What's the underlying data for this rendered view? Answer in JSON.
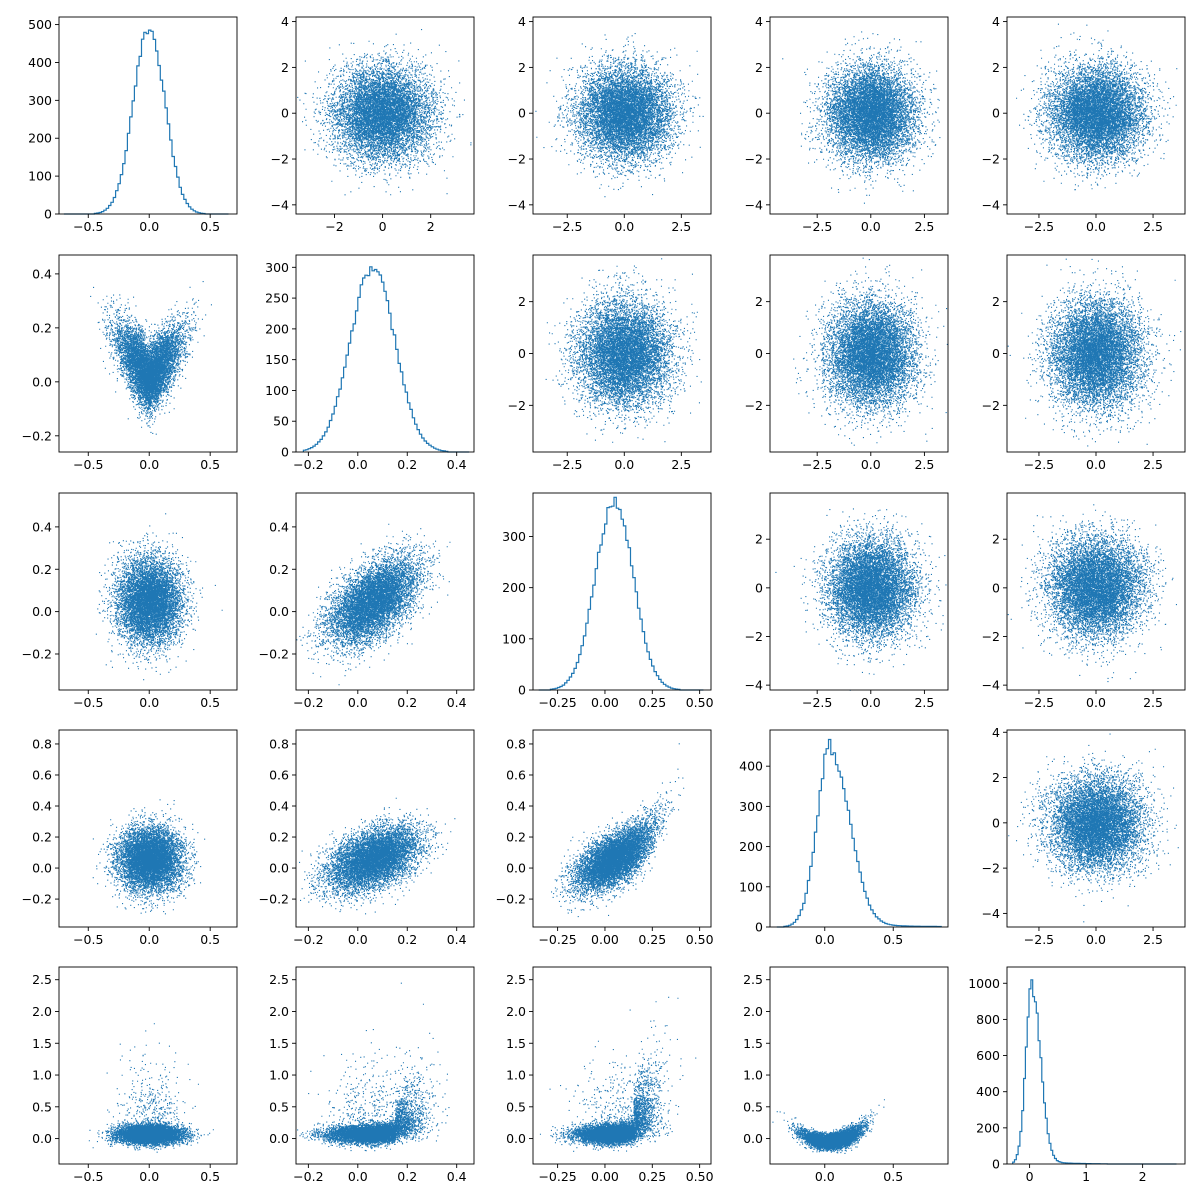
{
  "figure": {
    "type": "pair-plot-grid",
    "rows": 5,
    "cols": 5,
    "series_color": "#1f77b4",
    "grid": false
  },
  "chart_data": [
    {
      "type": "histogram",
      "row": 0,
      "col": 0,
      "xlim": [
        -0.74,
        0.72
      ],
      "ylim": [
        0,
        520
      ],
      "xticks": [
        -0.5,
        0,
        0.5
      ],
      "xtick_labels": [
        "−0.5",
        "0.0",
        "0.5"
      ],
      "yticks": [
        0,
        100,
        200,
        300,
        400,
        500
      ],
      "ytick_labels": [
        "0",
        "100",
        "200",
        "300",
        "400",
        "500"
      ],
      "dist": {
        "center": 0.0,
        "sd": 0.13,
        "peak": 490,
        "min": -0.7,
        "max": 0.65,
        "bins": 70
      }
    },
    {
      "type": "scatter",
      "row": 0,
      "col": 1,
      "xlim": [
        -3.6,
        3.8
      ],
      "ylim": [
        -4.4,
        4.2
      ],
      "xticks": [
        -2,
        0,
        2
      ],
      "xtick_labels": [
        "−2",
        "0",
        "2"
      ],
      "yticks": [
        -4,
        -2,
        0,
        2,
        4
      ],
      "ytick_labels": [
        "−4",
        "−2",
        "0",
        "2",
        "4"
      ],
      "points": {
        "n": 9000,
        "x": {
          "mean": 0,
          "sd": 1
        },
        "y": {
          "mean": 0,
          "sd": 1
        }
      }
    },
    {
      "type": "scatter",
      "row": 0,
      "col": 2,
      "xlim": [
        -4.0,
        3.8
      ],
      "ylim": [
        -4.4,
        4.2
      ],
      "xticks": [
        -2.5,
        0,
        2.5
      ],
      "xtick_labels": [
        "−2.5",
        "0.0",
        "2.5"
      ],
      "yticks": [
        -4,
        -2,
        0,
        2,
        4
      ],
      "ytick_labels": [
        "−4",
        "−2",
        "0",
        "2",
        "4"
      ],
      "points": {
        "n": 9000,
        "x": {
          "mean": 0,
          "sd": 1
        },
        "y": {
          "mean": 0,
          "sd": 1
        }
      }
    },
    {
      "type": "scatter",
      "row": 0,
      "col": 3,
      "xlim": [
        -4.7,
        3.6
      ],
      "ylim": [
        -4.4,
        4.2
      ],
      "xticks": [
        -2.5,
        0,
        2.5
      ],
      "xtick_labels": [
        "−2.5",
        "0.0",
        "2.5"
      ],
      "yticks": [
        -4,
        -2,
        0,
        2,
        4
      ],
      "ytick_labels": [
        "−4",
        "−2",
        "0",
        "2",
        "4"
      ],
      "points": {
        "n": 9000,
        "x": {
          "mean": 0,
          "sd": 1
        },
        "y": {
          "mean": 0,
          "sd": 1
        }
      }
    },
    {
      "type": "scatter",
      "row": 0,
      "col": 4,
      "xlim": [
        -3.9,
        3.9
      ],
      "ylim": [
        -4.4,
        4.2
      ],
      "xticks": [
        -2.5,
        0,
        2.5
      ],
      "xtick_labels": [
        "−2.5",
        "0.0",
        "2.5"
      ],
      "yticks": [
        -4,
        -2,
        0,
        2,
        4
      ],
      "ytick_labels": [
        "−4",
        "−2",
        "0",
        "2",
        "4"
      ],
      "points": {
        "n": 9000,
        "x": {
          "mean": 0,
          "sd": 1
        },
        "y": {
          "mean": 0,
          "sd": 1
        }
      }
    },
    {
      "type": "scatter",
      "row": 1,
      "col": 0,
      "xlim": [
        -0.74,
        0.72
      ],
      "ylim": [
        -0.26,
        0.47
      ],
      "xticks": [
        -0.5,
        0,
        0.5
      ],
      "xtick_labels": [
        "−0.5",
        "0.0",
        "0.5"
      ],
      "yticks": [
        -0.2,
        0,
        0.2,
        0.4
      ],
      "ytick_labels": [
        "−0.2",
        "0.0",
        "0.2",
        "0.4"
      ],
      "points": {
        "n": 8000,
        "x": {
          "mean": 0,
          "sd": 0.13
        },
        "y": {
          "mean": 0.05,
          "sd": 0.08
        },
        "shape": "v"
      }
    },
    {
      "type": "histogram",
      "row": 1,
      "col": 1,
      "xlim": [
        -0.25,
        0.47
      ],
      "ylim": [
        0,
        320
      ],
      "xticks": [
        -0.2,
        0,
        0.2,
        0.4
      ],
      "xtick_labels": [
        "−0.2",
        "0.0",
        "0.2",
        "0.4"
      ],
      "yticks": [
        0,
        50,
        100,
        150,
        200,
        250,
        300
      ],
      "ytick_labels": [
        "0",
        "50",
        "100",
        "150",
        "200",
        "250",
        "300"
      ],
      "dist": {
        "center": 0.06,
        "sd": 0.09,
        "peak": 300,
        "min": -0.22,
        "max": 0.45,
        "bins": 70
      }
    },
    {
      "type": "scatter",
      "row": 1,
      "col": 2,
      "xlim": [
        -4.0,
        3.8
      ],
      "ylim": [
        -3.8,
        3.8
      ],
      "xticks": [
        -2.5,
        0,
        2.5
      ],
      "xtick_labels": [
        "−2.5",
        "0.0",
        "2.5"
      ],
      "yticks": [
        -2,
        0,
        2
      ],
      "ytick_labels": [
        "−2",
        "0",
        "2"
      ],
      "points": {
        "n": 9000,
        "x": {
          "mean": 0,
          "sd": 1
        },
        "y": {
          "mean": 0,
          "sd": 1
        }
      }
    },
    {
      "type": "scatter",
      "row": 1,
      "col": 3,
      "xlim": [
        -4.7,
        3.6
      ],
      "ylim": [
        -3.8,
        3.8
      ],
      "xticks": [
        -2.5,
        0,
        2.5
      ],
      "xtick_labels": [
        "−2.5",
        "0.0",
        "2.5"
      ],
      "yticks": [
        -2,
        0,
        2
      ],
      "ytick_labels": [
        "−2",
        "0",
        "2"
      ],
      "points": {
        "n": 9000,
        "x": {
          "mean": 0,
          "sd": 1
        },
        "y": {
          "mean": 0,
          "sd": 1
        }
      }
    },
    {
      "type": "scatter",
      "row": 1,
      "col": 4,
      "xlim": [
        -3.9,
        3.9
      ],
      "ylim": [
        -3.8,
        3.8
      ],
      "xticks": [
        -2.5,
        0,
        2.5
      ],
      "xtick_labels": [
        "−2.5",
        "0.0",
        "2.5"
      ],
      "yticks": [
        -2,
        0,
        2
      ],
      "ytick_labels": [
        "−2",
        "0",
        "2"
      ],
      "points": {
        "n": 9000,
        "x": {
          "mean": 0,
          "sd": 1
        },
        "y": {
          "mean": 0,
          "sd": 1
        }
      }
    },
    {
      "type": "scatter",
      "row": 2,
      "col": 0,
      "xlim": [
        -0.74,
        0.72
      ],
      "ylim": [
        -0.37,
        0.56
      ],
      "xticks": [
        -0.5,
        0,
        0.5
      ],
      "xtick_labels": [
        "−0.5",
        "0.0",
        "0.5"
      ],
      "yticks": [
        -0.2,
        0,
        0.2,
        0.4
      ],
      "ytick_labels": [
        "−0.2",
        "0.0",
        "0.2",
        "0.4"
      ],
      "points": {
        "n": 8000,
        "x": {
          "mean": 0,
          "sd": 0.13
        },
        "y": {
          "mean": 0.05,
          "sd": 0.1
        }
      }
    },
    {
      "type": "scatter",
      "row": 2,
      "col": 1,
      "xlim": [
        -0.25,
        0.47
      ],
      "ylim": [
        -0.37,
        0.56
      ],
      "xticks": [
        -0.2,
        0,
        0.2,
        0.4
      ],
      "xtick_labels": [
        "−0.2",
        "0.0",
        "0.2",
        "0.4"
      ],
      "yticks": [
        -0.2,
        0,
        0.2,
        0.4
      ],
      "ytick_labels": [
        "−0.2",
        "0.0",
        "0.2",
        "0.4"
      ],
      "points": {
        "n": 8000,
        "x": {
          "mean": 0.06,
          "sd": 0.09
        },
        "y": {
          "mean": 0.05,
          "sd": 0.1
        },
        "corr": 0.55
      }
    },
    {
      "type": "histogram",
      "row": 2,
      "col": 2,
      "xlim": [
        -0.38,
        0.56
      ],
      "ylim": [
        0,
        385
      ],
      "xticks": [
        -0.25,
        0,
        0.25,
        0.5
      ],
      "xtick_labels": [
        "−0.25",
        "0.00",
        "0.25",
        "0.50"
      ],
      "yticks": [
        0,
        100,
        200,
        300
      ],
      "ytick_labels": [
        "0",
        "100",
        "200",
        "300"
      ],
      "dist": {
        "center": 0.05,
        "sd": 0.1,
        "peak": 370,
        "min": -0.35,
        "max": 0.52,
        "bins": 70
      }
    },
    {
      "type": "scatter",
      "row": 2,
      "col": 3,
      "xlim": [
        -4.7,
        3.6
      ],
      "ylim": [
        -4.2,
        3.9
      ],
      "xticks": [
        -2.5,
        0,
        2.5
      ],
      "xtick_labels": [
        "−2.5",
        "0.0",
        "2.5"
      ],
      "yticks": [
        -4,
        -2,
        0,
        2
      ],
      "ytick_labels": [
        "−4",
        "−2",
        "0",
        "2"
      ],
      "points": {
        "n": 9000,
        "x": {
          "mean": 0,
          "sd": 1
        },
        "y": {
          "mean": 0,
          "sd": 1
        }
      }
    },
    {
      "type": "scatter",
      "row": 2,
      "col": 4,
      "xlim": [
        -3.9,
        3.9
      ],
      "ylim": [
        -4.2,
        3.9
      ],
      "xticks": [
        -2.5,
        0,
        2.5
      ],
      "xtick_labels": [
        "−2.5",
        "0.0",
        "2.5"
      ],
      "yticks": [
        -4,
        -2,
        0,
        2
      ],
      "ytick_labels": [
        "−4",
        "−2",
        "0",
        "2"
      ],
      "points": {
        "n": 9000,
        "x": {
          "mean": 0,
          "sd": 1
        },
        "y": {
          "mean": 0,
          "sd": 1
        }
      }
    },
    {
      "type": "scatter",
      "row": 3,
      "col": 0,
      "xlim": [
        -0.74,
        0.72
      ],
      "ylim": [
        -0.38,
        0.89
      ],
      "xticks": [
        -0.5,
        0,
        0.5
      ],
      "xtick_labels": [
        "−0.5",
        "0.0",
        "0.5"
      ],
      "yticks": [
        -0.2,
        0,
        0.2,
        0.4,
        0.6,
        0.8
      ],
      "ytick_labels": [
        "−0.2",
        "0.0",
        "0.2",
        "0.4",
        "0.6",
        "0.8"
      ],
      "points": {
        "n": 8000,
        "x": {
          "mean": 0,
          "sd": 0.13
        },
        "y": {
          "mean": 0.06,
          "sd": 0.1
        }
      }
    },
    {
      "type": "scatter",
      "row": 3,
      "col": 1,
      "xlim": [
        -0.25,
        0.47
      ],
      "ylim": [
        -0.38,
        0.89
      ],
      "xticks": [
        -0.2,
        0,
        0.2,
        0.4
      ],
      "xtick_labels": [
        "−0.2",
        "0.0",
        "0.2",
        "0.4"
      ],
      "yticks": [
        -0.2,
        0,
        0.2,
        0.4,
        0.6,
        0.8
      ],
      "ytick_labels": [
        "−0.2",
        "0.0",
        "0.2",
        "0.4",
        "0.6",
        "0.8"
      ],
      "points": {
        "n": 8000,
        "x": {
          "mean": 0.06,
          "sd": 0.09
        },
        "y": {
          "mean": 0.06,
          "sd": 0.1
        },
        "corr": 0.45
      }
    },
    {
      "type": "scatter",
      "row": 3,
      "col": 2,
      "xlim": [
        -0.38,
        0.56
      ],
      "ylim": [
        -0.38,
        0.89
      ],
      "xticks": [
        -0.25,
        0,
        0.25,
        0.5
      ],
      "xtick_labels": [
        "−0.25",
        "0.00",
        "0.25",
        "0.50"
      ],
      "yticks": [
        -0.2,
        0,
        0.2,
        0.4,
        0.6,
        0.8
      ],
      "ytick_labels": [
        "−0.2",
        "0.0",
        "0.2",
        "0.4",
        "0.6",
        "0.8"
      ],
      "points": {
        "n": 8000,
        "x": {
          "mean": 0.05,
          "sd": 0.1
        },
        "y": {
          "mean": 0.06,
          "sd": 0.1
        },
        "corr": 0.6,
        "curve": true
      }
    },
    {
      "type": "histogram",
      "row": 3,
      "col": 3,
      "xlim": [
        -0.4,
        0.9
      ],
      "ylim": [
        0,
        490
      ],
      "xticks": [
        0,
        0.5
      ],
      "xtick_labels": [
        "0.0",
        "0.5"
      ],
      "yticks": [
        0,
        100,
        200,
        300,
        400
      ],
      "ytick_labels": [
        "0",
        "100",
        "200",
        "300",
        "400"
      ],
      "dist": {
        "center": 0.05,
        "sd": 0.1,
        "peak": 470,
        "min": -0.35,
        "max": 0.85,
        "bins": 70,
        "skew": true
      }
    },
    {
      "type": "scatter",
      "row": 3,
      "col": 4,
      "xlim": [
        -3.9,
        3.9
      ],
      "ylim": [
        -4.6,
        4.1
      ],
      "xticks": [
        -2.5,
        0,
        2.5
      ],
      "xtick_labels": [
        "−2.5",
        "0.0",
        "2.5"
      ],
      "yticks": [
        -4,
        -2,
        0,
        2,
        4
      ],
      "ytick_labels": [
        "−4",
        "−2",
        "0",
        "2",
        "4"
      ],
      "points": {
        "n": 9000,
        "x": {
          "mean": 0,
          "sd": 1
        },
        "y": {
          "mean": 0,
          "sd": 1
        }
      }
    },
    {
      "type": "scatter",
      "row": 4,
      "col": 0,
      "xlim": [
        -0.74,
        0.72
      ],
      "ylim": [
        -0.4,
        2.7
      ],
      "xticks": [
        -0.5,
        0,
        0.5
      ],
      "xtick_labels": [
        "−0.5",
        "0.0",
        "0.5"
      ],
      "yticks": [
        0,
        0.5,
        1,
        1.5,
        2,
        2.5
      ],
      "ytick_labels": [
        "0.0",
        "0.5",
        "1.0",
        "1.5",
        "2.0",
        "2.5"
      ],
      "points": {
        "n": 8000,
        "x": {
          "mean": 0,
          "sd": 0.13
        },
        "y": {
          "mean": 0.07,
          "sd": 0.12
        },
        "tail": true
      }
    },
    {
      "type": "scatter",
      "row": 4,
      "col": 1,
      "xlim": [
        -0.25,
        0.47
      ],
      "ylim": [
        -0.4,
        2.7
      ],
      "xticks": [
        -0.2,
        0,
        0.2,
        0.4
      ],
      "xtick_labels": [
        "−0.2",
        "0.0",
        "0.2",
        "0.4"
      ],
      "yticks": [
        0,
        0.5,
        1,
        1.5,
        2,
        2.5
      ],
      "ytick_labels": [
        "0.0",
        "0.5",
        "1.0",
        "1.5",
        "2.0",
        "2.5"
      ],
      "points": {
        "n": 8000,
        "x": {
          "mean": 0.06,
          "sd": 0.09
        },
        "y": {
          "mean": 0.07,
          "sd": 0.12
        },
        "tail": true
      }
    },
    {
      "type": "scatter",
      "row": 4,
      "col": 2,
      "xlim": [
        -0.38,
        0.56
      ],
      "ylim": [
        -0.4,
        2.7
      ],
      "xticks": [
        -0.25,
        0,
        0.25,
        0.5
      ],
      "xtick_labels": [
        "−0.25",
        "0.00",
        "0.25",
        "0.50"
      ],
      "yticks": [
        0,
        0.5,
        1,
        1.5,
        2,
        2.5
      ],
      "ytick_labels": [
        "0.0",
        "0.5",
        "1.0",
        "1.5",
        "2.0",
        "2.5"
      ],
      "points": {
        "n": 8000,
        "x": {
          "mean": 0.05,
          "sd": 0.1
        },
        "y": {
          "mean": 0.07,
          "sd": 0.12
        },
        "tail": true
      }
    },
    {
      "type": "scatter",
      "row": 4,
      "col": 3,
      "xlim": [
        -0.4,
        0.9
      ],
      "ylim": [
        -0.4,
        2.7
      ],
      "xticks": [
        0,
        0.5
      ],
      "xtick_labels": [
        "0.0",
        "0.5"
      ],
      "yticks": [
        0,
        0.5,
        1,
        1.5,
        2,
        2.5
      ],
      "ytick_labels": [
        "0.0",
        "0.5",
        "1.0",
        "1.5",
        "2.0",
        "2.5"
      ],
      "points": {
        "n": 8000,
        "x": {
          "mean": 0.05,
          "sd": 0.1
        },
        "y": {
          "mean": 0.07,
          "sd": 0.12
        },
        "parabola": true
      }
    },
    {
      "type": "histogram",
      "row": 4,
      "col": 4,
      "xlim": [
        -0.4,
        2.75
      ],
      "ylim": [
        0,
        1090
      ],
      "xticks": [
        0,
        1,
        2
      ],
      "xtick_labels": [
        "0",
        "1",
        "2"
      ],
      "yticks": [
        0,
        200,
        400,
        600,
        800,
        1000
      ],
      "ytick_labels": [
        "0",
        "200",
        "400",
        "600",
        "800",
        "1000"
      ],
      "dist": {
        "center": 0.05,
        "sd": 0.11,
        "peak": 1040,
        "min": -0.3,
        "max": 2.6,
        "bins": 90,
        "skew": true
      }
    }
  ]
}
